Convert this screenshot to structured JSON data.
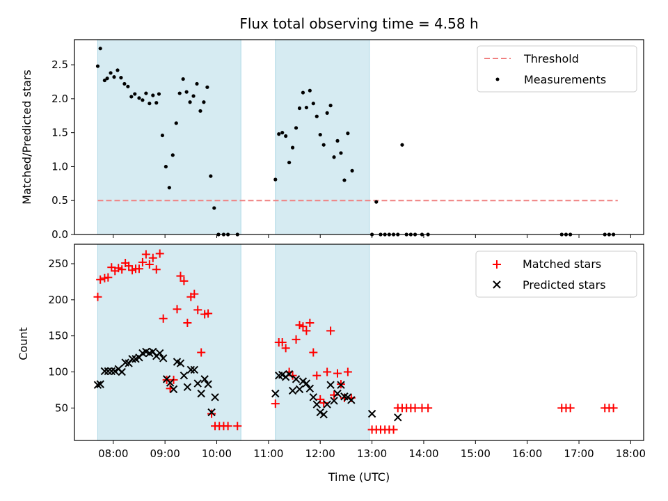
{
  "chart_data": [
    {
      "type": "scatter",
      "title": "Flux total observing time = 4.58 h",
      "xlabel": "",
      "ylabel": "Matched/Predicted stars",
      "ylim": [
        0,
        2.87
      ],
      "yticks": [
        "0.0",
        "0.5",
        "1.0",
        "1.5",
        "2.0",
        "2.5"
      ],
      "ytick_values": [
        0,
        0.5,
        1.0,
        1.5,
        2.0,
        2.5
      ],
      "shaded_intervals": [
        [
          "07:42",
          "10:28"
        ],
        [
          "11:08",
          "12:57"
        ]
      ],
      "threshold": {
        "name": "Threshold",
        "value": 0.5,
        "x_range": [
          "07:42",
          "17:45"
        ],
        "color": "#f08080"
      },
      "legend_position": "top-right",
      "legend": [
        "Threshold",
        "Measurements"
      ],
      "series": [
        {
          "name": "Measurements",
          "color": "#000000",
          "points": [
            [
              "07:42",
              2.48
            ],
            [
              "07:45",
              2.74
            ],
            [
              "07:50",
              2.27
            ],
            [
              "07:53",
              2.3
            ],
            [
              "07:57",
              2.38
            ],
            [
              "08:01",
              2.32
            ],
            [
              "08:05",
              2.42
            ],
            [
              "08:09",
              2.31
            ],
            [
              "08:13",
              2.22
            ],
            [
              "08:17",
              2.18
            ],
            [
              "08:21",
              2.03
            ],
            [
              "08:25",
              2.07
            ],
            [
              "08:30",
              2.01
            ],
            [
              "08:34",
              1.98
            ],
            [
              "08:38",
              2.08
            ],
            [
              "08:42",
              1.93
            ],
            [
              "08:46",
              2.05
            ],
            [
              "08:50",
              1.94
            ],
            [
              "08:53",
              2.07
            ],
            [
              "08:57",
              1.46
            ],
            [
              "09:01",
              1.0
            ],
            [
              "09:05",
              0.69
            ],
            [
              "09:09",
              1.17
            ],
            [
              "09:13",
              1.64
            ],
            [
              "09:17",
              2.08
            ],
            [
              "09:21",
              2.29
            ],
            [
              "09:25",
              2.1
            ],
            [
              "09:29",
              1.95
            ],
            [
              "09:33",
              2.04
            ],
            [
              "09:37",
              2.22
            ],
            [
              "09:41",
              1.82
            ],
            [
              "09:45",
              1.95
            ],
            [
              "09:49",
              2.17
            ],
            [
              "09:53",
              0.86
            ],
            [
              "09:57",
              0.39
            ],
            [
              "10:02",
              0.0
            ],
            [
              "10:08",
              0.0
            ],
            [
              "10:13",
              0.0
            ],
            [
              "10:24",
              0.0
            ],
            [
              "11:08",
              0.81
            ],
            [
              "11:12",
              1.48
            ],
            [
              "11:16",
              1.5
            ],
            [
              "11:20",
              1.45
            ],
            [
              "11:24",
              1.06
            ],
            [
              "11:28",
              1.28
            ],
            [
              "11:32",
              1.57
            ],
            [
              "11:36",
              1.86
            ],
            [
              "11:40",
              2.09
            ],
            [
              "11:44",
              1.87
            ],
            [
              "11:48",
              2.12
            ],
            [
              "11:52",
              1.93
            ],
            [
              "11:56",
              1.74
            ],
            [
              "12:00",
              1.47
            ],
            [
              "12:04",
              1.32
            ],
            [
              "12:08",
              1.79
            ],
            [
              "12:12",
              1.9
            ],
            [
              "12:16",
              1.14
            ],
            [
              "12:20",
              1.38
            ],
            [
              "12:24",
              1.2
            ],
            [
              "12:28",
              0.8
            ],
            [
              "12:32",
              1.49
            ],
            [
              "12:37",
              0.94
            ],
            [
              "13:00",
              0.0
            ],
            [
              "13:05",
              0.48
            ],
            [
              "13:10",
              0.0
            ],
            [
              "13:15",
              0.0
            ],
            [
              "13:20",
              0.0
            ],
            [
              "13:25",
              0.0
            ],
            [
              "13:30",
              0.0
            ],
            [
              "13:35",
              1.32
            ],
            [
              "13:40",
              0.0
            ],
            [
              "13:45",
              0.0
            ],
            [
              "13:50",
              0.0
            ],
            [
              "13:58",
              0.0
            ],
            [
              "14:05",
              0.0
            ],
            [
              "16:40",
              0.0
            ],
            [
              "16:45",
              0.0
            ],
            [
              "16:50",
              0.0
            ],
            [
              "17:30",
              0.0
            ],
            [
              "17:35",
              0.0
            ],
            [
              "17:40",
              0.0
            ]
          ]
        }
      ]
    },
    {
      "type": "scatter",
      "title": "",
      "xlabel": "Time (UTC)",
      "ylabel": "Count",
      "ylim": [
        5,
        277
      ],
      "yticks": [
        "50",
        "100",
        "150",
        "200",
        "250"
      ],
      "ytick_values": [
        50,
        100,
        150,
        200,
        250
      ],
      "xlim": [
        "07:15",
        "18:15"
      ],
      "xticks": [
        "08:00",
        "09:00",
        "10:00",
        "11:00",
        "12:00",
        "13:00",
        "14:00",
        "15:00",
        "16:00",
        "17:00",
        "18:00"
      ],
      "shaded_intervals": [
        [
          "07:42",
          "10:28"
        ],
        [
          "11:08",
          "12:57"
        ]
      ],
      "legend_position": "top-right",
      "legend": [
        "Matched stars",
        "Predicted stars"
      ],
      "series": [
        {
          "name": "Matched stars",
          "marker": "plus",
          "color": "#ff0000",
          "points": [
            [
              "07:42",
              204
            ],
            [
              "07:45",
              228
            ],
            [
              "07:50",
              230
            ],
            [
              "07:54",
              231
            ],
            [
              "07:58",
              245
            ],
            [
              "08:02",
              240
            ],
            [
              "08:06",
              244
            ],
            [
              "08:10",
              242
            ],
            [
              "08:14",
              251
            ],
            [
              "08:18",
              247
            ],
            [
              "08:22",
              241
            ],
            [
              "08:26",
              243
            ],
            [
              "08:30",
              243
            ],
            [
              "08:34",
              252
            ],
            [
              "08:38",
              263
            ],
            [
              "08:42",
              249
            ],
            [
              "08:46",
              258
            ],
            [
              "08:50",
              242
            ],
            [
              "08:54",
              264
            ],
            [
              "08:58",
              174
            ],
            [
              "09:02",
              89
            ],
            [
              "09:06",
              77
            ],
            [
              "09:10",
              89
            ],
            [
              "09:14",
              187
            ],
            [
              "09:18",
              233
            ],
            [
              "09:22",
              226
            ],
            [
              "09:26",
              168
            ],
            [
              "09:30",
              204
            ],
            [
              "09:34",
              208
            ],
            [
              "09:38",
              186
            ],
            [
              "09:42",
              127
            ],
            [
              "09:46",
              180
            ],
            [
              "09:50",
              181
            ],
            [
              "09:54",
              42
            ],
            [
              "09:58",
              25
            ],
            [
              "10:03",
              25
            ],
            [
              "10:08",
              25
            ],
            [
              "10:13",
              25
            ],
            [
              "10:24",
              25
            ],
            [
              "11:08",
              56
            ],
            [
              "11:12",
              141
            ],
            [
              "11:16",
              141
            ],
            [
              "11:20",
              133
            ],
            [
              "11:24",
              100
            ],
            [
              "11:28",
              95
            ],
            [
              "11:32",
              145
            ],
            [
              "11:36",
              165
            ],
            [
              "11:40",
              163
            ],
            [
              "11:44",
              157
            ],
            [
              "11:48",
              168
            ],
            [
              "11:52",
              127
            ],
            [
              "11:56",
              95
            ],
            [
              "12:00",
              62
            ],
            [
              "12:04",
              57
            ],
            [
              "12:08",
              100
            ],
            [
              "12:12",
              157
            ],
            [
              "12:16",
              68
            ],
            [
              "12:20",
              98
            ],
            [
              "12:24",
              83
            ],
            [
              "12:28",
              64
            ],
            [
              "12:32",
              100
            ],
            [
              "12:36",
              64
            ],
            [
              "13:00",
              20
            ],
            [
              "13:05",
              20
            ],
            [
              "13:10",
              20
            ],
            [
              "13:15",
              20
            ],
            [
              "13:20",
              20
            ],
            [
              "13:25",
              20
            ],
            [
              "13:30",
              50
            ],
            [
              "13:35",
              50
            ],
            [
              "13:40",
              50
            ],
            [
              "13:45",
              50
            ],
            [
              "13:50",
              50
            ],
            [
              "13:58",
              50
            ],
            [
              "14:05",
              50
            ],
            [
              "16:40",
              50
            ],
            [
              "16:45",
              50
            ],
            [
              "16:50",
              50
            ],
            [
              "17:30",
              50
            ],
            [
              "17:35",
              50
            ],
            [
              "17:40",
              50
            ]
          ]
        },
        {
          "name": "Predicted stars",
          "marker": "x",
          "color": "#000000",
          "points": [
            [
              "07:42",
              82
            ],
            [
              "07:45",
              83
            ],
            [
              "07:50",
              101
            ],
            [
              "07:54",
              101
            ],
            [
              "07:58",
              101
            ],
            [
              "08:02",
              101
            ],
            [
              "08:06",
              104
            ],
            [
              "08:10",
              100
            ],
            [
              "08:14",
              113
            ],
            [
              "08:18",
              112
            ],
            [
              "08:22",
              118
            ],
            [
              "08:26",
              118
            ],
            [
              "08:30",
              120
            ],
            [
              "08:34",
              126
            ],
            [
              "08:38",
              128
            ],
            [
              "08:42",
              126
            ],
            [
              "08:46",
              128
            ],
            [
              "08:50",
              122
            ],
            [
              "08:54",
              126
            ],
            [
              "08:58",
              119
            ],
            [
              "09:02",
              90
            ],
            [
              "09:06",
              85
            ],
            [
              "09:10",
              76
            ],
            [
              "09:14",
              114
            ],
            [
              "09:18",
              112
            ],
            [
              "09:22",
              95
            ],
            [
              "09:26",
              79
            ],
            [
              "09:30",
              103
            ],
            [
              "09:34",
              103
            ],
            [
              "09:38",
              84
            ],
            [
              "09:42",
              70
            ],
            [
              "09:46",
              90
            ],
            [
              "09:50",
              83
            ],
            [
              "09:54",
              44
            ],
            [
              "09:58",
              65
            ],
            [
              "11:08",
              70
            ],
            [
              "11:12",
              95
            ],
            [
              "11:16",
              96
            ],
            [
              "11:20",
              93
            ],
            [
              "11:24",
              97
            ],
            [
              "11:28",
              74
            ],
            [
              "11:32",
              90
            ],
            [
              "11:36",
              76
            ],
            [
              "11:40",
              87
            ],
            [
              "11:44",
              84
            ],
            [
              "11:48",
              77
            ],
            [
              "11:52",
              65
            ],
            [
              "11:56",
              55
            ],
            [
              "12:00",
              44
            ],
            [
              "12:04",
              41
            ],
            [
              "12:08",
              55
            ],
            [
              "12:12",
              82
            ],
            [
              "12:16",
              60
            ],
            [
              "12:20",
              70
            ],
            [
              "12:24",
              82
            ],
            [
              "12:28",
              66
            ],
            [
              "12:32",
              65
            ],
            [
              "12:36",
              61
            ],
            [
              "13:00",
              42
            ],
            [
              "13:30",
              37
            ]
          ]
        }
      ]
    }
  ]
}
